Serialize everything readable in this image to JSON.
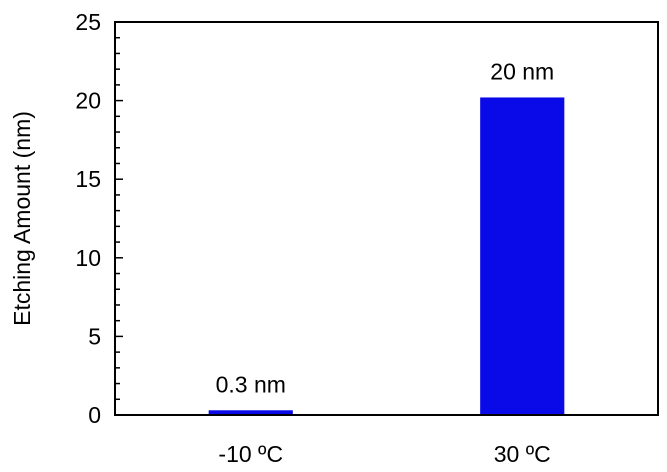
{
  "chart_data": {
    "type": "bar",
    "title": "",
    "xlabel": "",
    "ylabel": "Etching Amount (nm)",
    "categories": [
      "-10 ºC",
      "30 ºC"
    ],
    "values": [
      0.3,
      20.2
    ],
    "data_labels": [
      "0.3 nm",
      "20 nm"
    ],
    "ylim": [
      0,
      25
    ],
    "yticks": [
      0,
      5,
      10,
      15,
      20,
      25
    ],
    "y_minor_step": 1,
    "grid": false,
    "legend": "none",
    "bar_color": "#0a0ae8",
    "axis_color": "#000000"
  }
}
